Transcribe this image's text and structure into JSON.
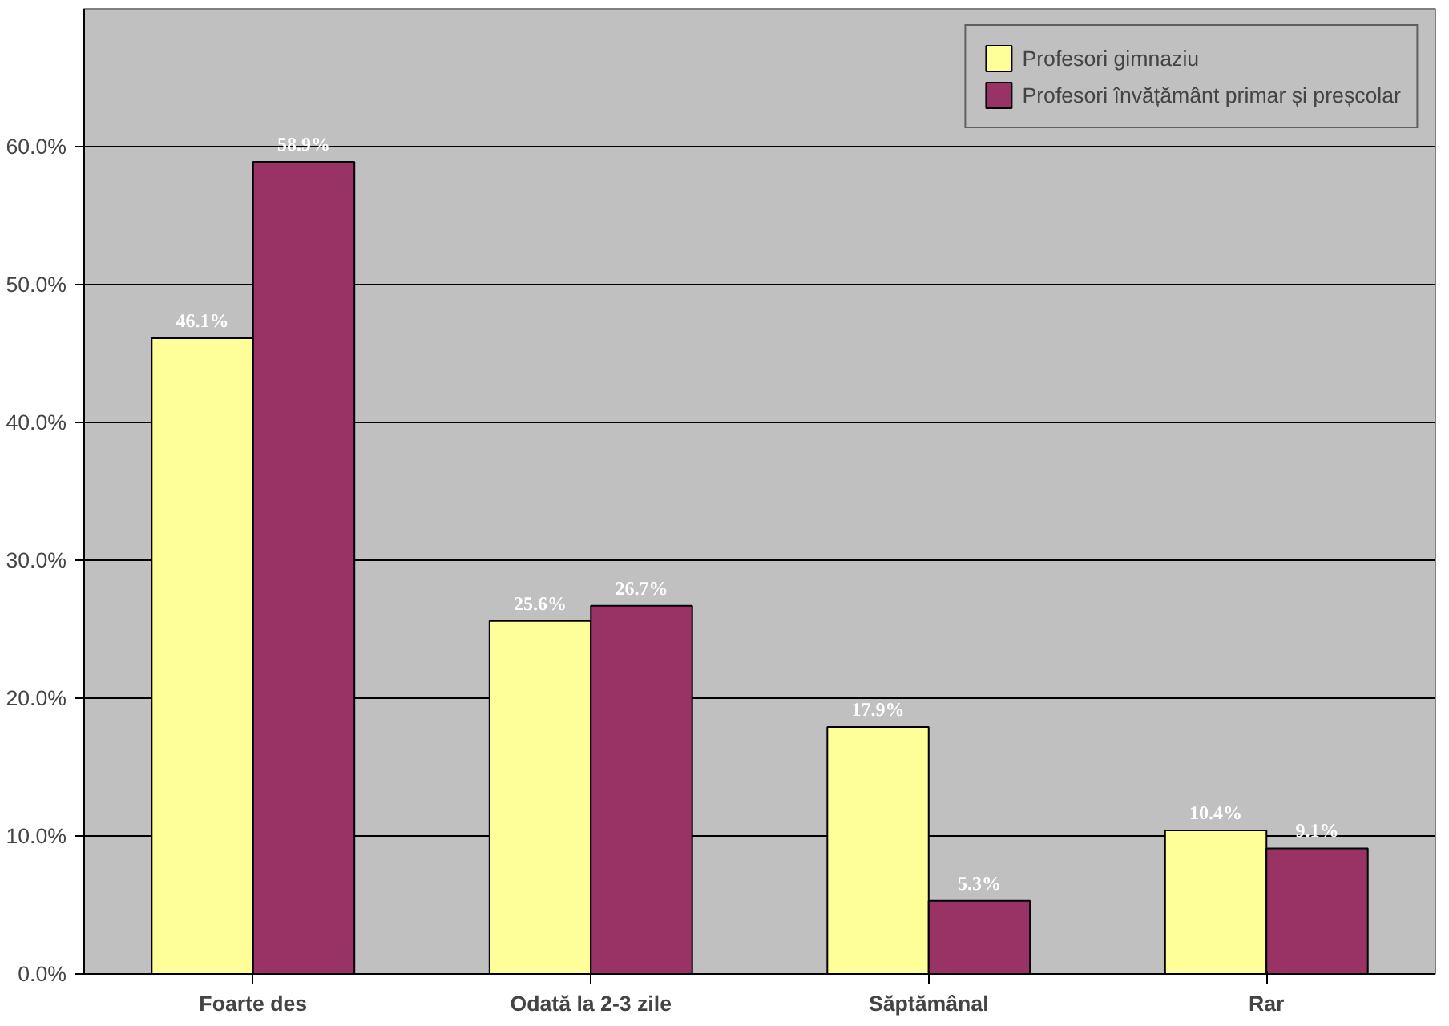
{
  "chart_data": {
    "type": "bar",
    "categories": [
      "Foarte des",
      "Odată la 2-3 zile",
      "Săptămânal",
      "Rar"
    ],
    "series": [
      {
        "name": "Profesori gimnaziu",
        "color": "#ffff99",
        "values": [
          46.1,
          25.6,
          17.9,
          10.4
        ],
        "value_labels": [
          "46.1%",
          "25.6%",
          "17.9%",
          "10.4%"
        ]
      },
      {
        "name": "Profesori învățământ primar și preșcolar",
        "color": "#993366",
        "values": [
          58.9,
          26.7,
          5.3,
          9.1
        ],
        "value_labels": [
          "58.9%",
          "26.7%",
          "5.3%",
          "9.1%"
        ]
      }
    ],
    "ylim": [
      0,
      70
    ],
    "yticks": [
      {
        "value": 0,
        "label": "0.0%"
      },
      {
        "value": 10,
        "label": "10.0%"
      },
      {
        "value": 20,
        "label": "20.0%"
      },
      {
        "value": 30,
        "label": "30.0%"
      },
      {
        "value": 40,
        "label": "40.0%"
      },
      {
        "value": 50,
        "label": "50.0%"
      },
      {
        "value": 60,
        "label": "60.0%"
      }
    ],
    "grid": "y",
    "legend": "top right"
  }
}
